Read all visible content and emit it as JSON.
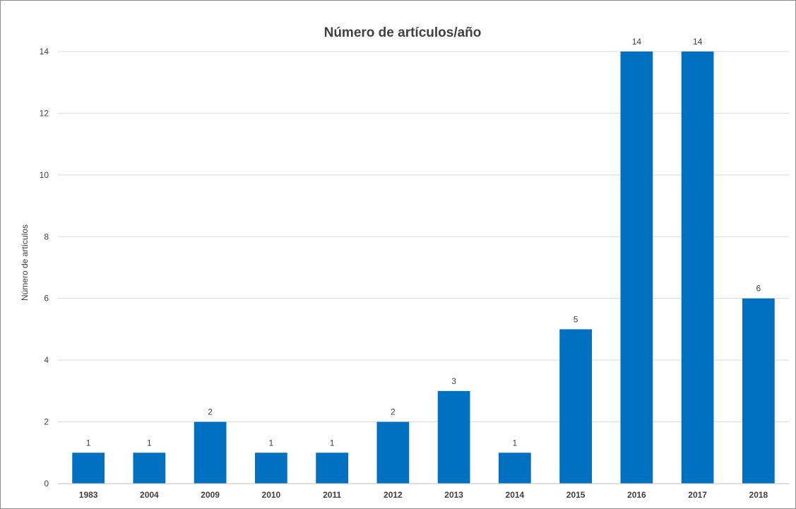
{
  "chart_data": {
    "type": "bar",
    "title": "Número de artículos/año",
    "xlabel": "",
    "ylabel": "Número de artículos",
    "categories": [
      "1983",
      "2004",
      "2009",
      "2010",
      "2011",
      "2012",
      "2013",
      "2014",
      "2015",
      "2016",
      "2017",
      "2018"
    ],
    "values": [
      1,
      1,
      2,
      1,
      1,
      2,
      3,
      1,
      5,
      14,
      14,
      6
    ],
    "data_labels": [
      "1",
      "1",
      "2",
      "1",
      "1",
      "2",
      "3",
      "1",
      "5",
      "14",
      "14",
      "6"
    ],
    "ylim": [
      0,
      14
    ],
    "yticks": [
      0,
      2,
      4,
      6,
      8,
      10,
      12,
      14
    ],
    "grid": true,
    "legend": "none",
    "bar_color": "#0070C0"
  }
}
